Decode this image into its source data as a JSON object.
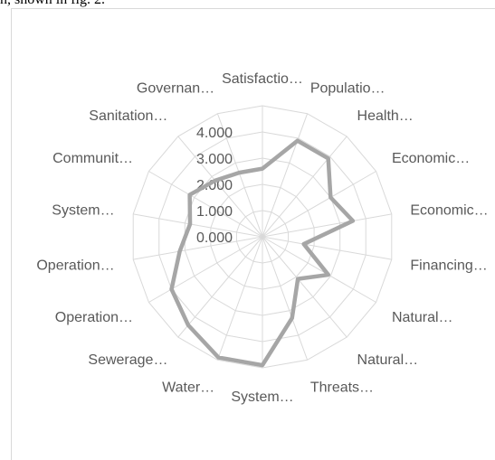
{
  "caption_fragment": "n, shown in fig. 2.",
  "chart_data": {
    "type": "radar",
    "categories": [
      "Satisfactio…",
      "Populatio…",
      "Health…",
      "Economic…",
      "Economic…",
      "Financing…",
      "Natural…",
      "Natural…",
      "Threats…",
      "System…",
      "Water…",
      "Sewerage…",
      "Operation…",
      "Operation…",
      "System…",
      "Communit…",
      "Sanitation…",
      "Governan…"
    ],
    "ticks": [
      "0.000",
      "1.000",
      "2.000",
      "3.000",
      "4.000"
    ],
    "rmax": 5,
    "series": [
      {
        "values": [
          2.6,
          3.9,
          3.9,
          3.0,
          3.5,
          1.6,
          2.9,
          2.1,
          3.3,
          4.9,
          4.9,
          4.4,
          4.0,
          3.2,
          2.8,
          3.2,
          2.8,
          2.6
        ],
        "color": "#a6a6a6"
      }
    ],
    "grid": true,
    "legend": "none"
  }
}
